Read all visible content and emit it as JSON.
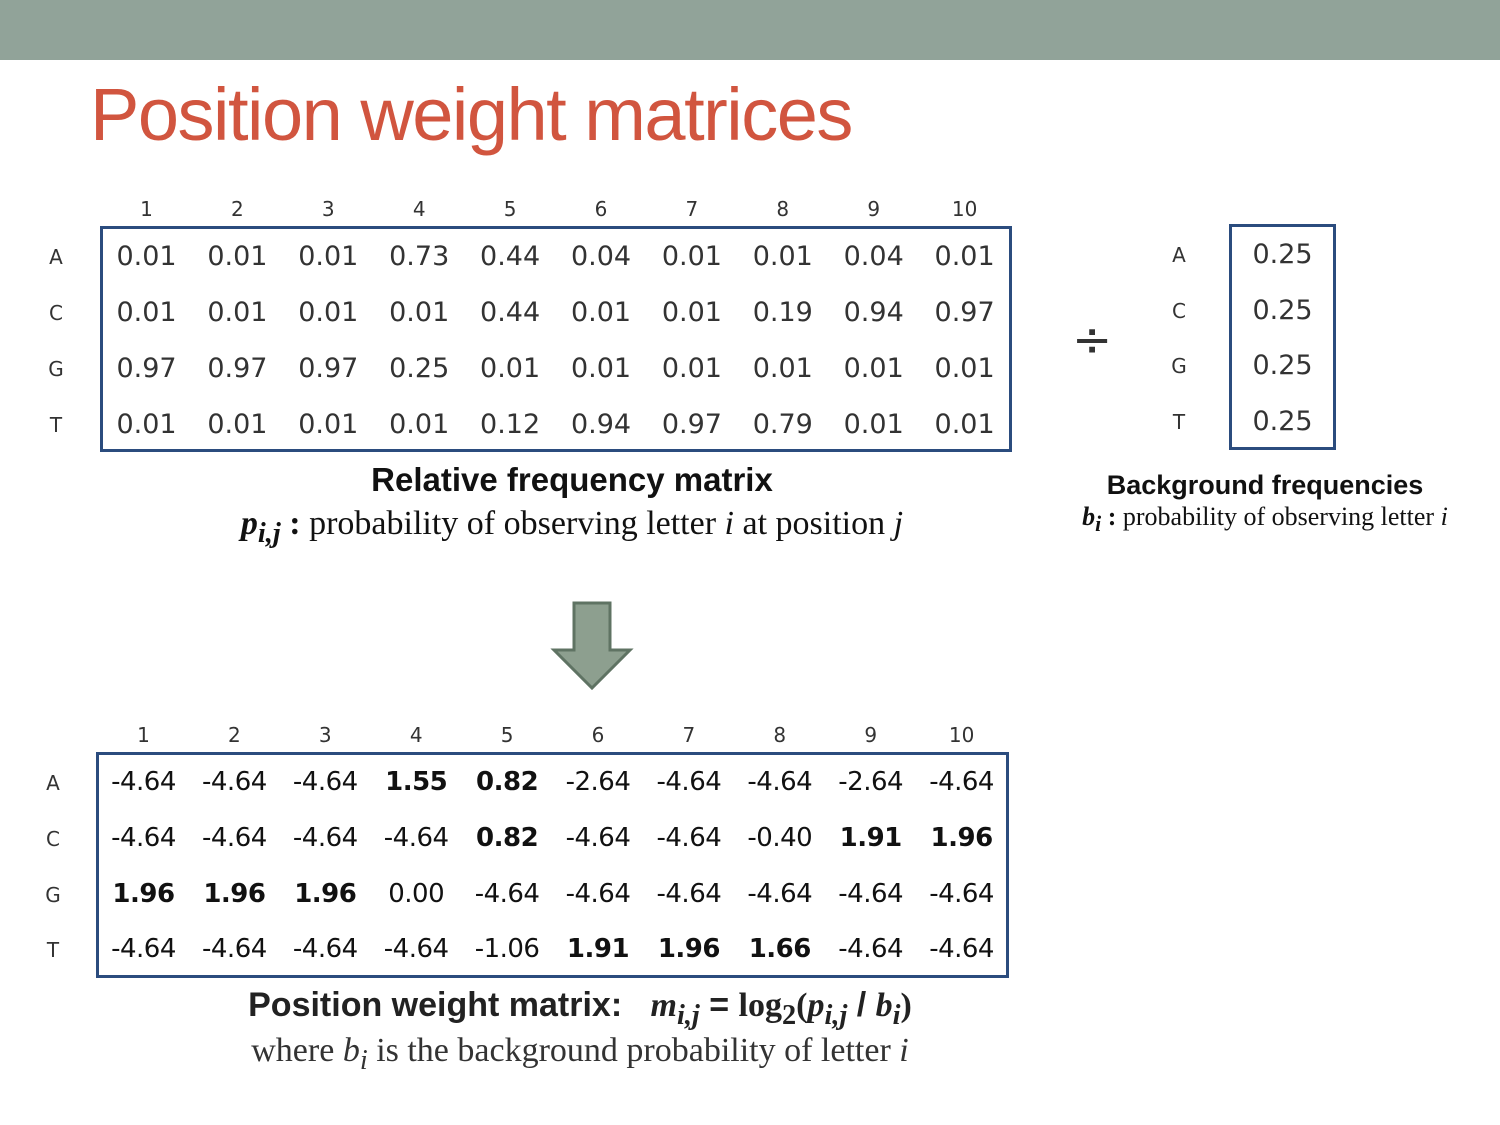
{
  "slide": {
    "title": "Position weight matrices"
  },
  "rows": [
    "A",
    "C",
    "G",
    "T"
  ],
  "columns": [
    "1",
    "2",
    "3",
    "4",
    "5",
    "6",
    "7",
    "8",
    "9",
    "10"
  ],
  "frequency_matrix": {
    "values": [
      [
        "0.01",
        "0.01",
        "0.01",
        "0.73",
        "0.44",
        "0.04",
        "0.01",
        "0.01",
        "0.04",
        "0.01"
      ],
      [
        "0.01",
        "0.01",
        "0.01",
        "0.01",
        "0.44",
        "0.01",
        "0.01",
        "0.19",
        "0.94",
        "0.97"
      ],
      [
        "0.97",
        "0.97",
        "0.97",
        "0.25",
        "0.01",
        "0.01",
        "0.01",
        "0.01",
        "0.01",
        "0.01"
      ],
      [
        "0.01",
        "0.01",
        "0.01",
        "0.01",
        "0.12",
        "0.94",
        "0.97",
        "0.79",
        "0.01",
        "0.01"
      ]
    ],
    "caption_title": "Relative frequency matrix",
    "caption_symbol": "p",
    "caption_sub": "i,j",
    "caption_text_1": " : ",
    "caption_text_2": "probability of observing letter ",
    "caption_var_i": "i",
    "caption_text_3": " at position ",
    "caption_var_j": "j"
  },
  "background": {
    "values": [
      "0.25",
      "0.25",
      "0.25",
      "0.25"
    ],
    "divide_symbol": "÷",
    "caption_title": "Background frequencies",
    "caption_symbol": "b",
    "caption_sub": "i",
    "caption_text_1": " : ",
    "caption_text_2": "probability of observing letter ",
    "caption_var_i": "i"
  },
  "weight_matrix": {
    "values": [
      [
        "-4.64",
        "-4.64",
        "-4.64",
        "1.55",
        "0.82",
        "-2.64",
        "-4.64",
        "-4.64",
        "-2.64",
        "-4.64"
      ],
      [
        "-4.64",
        "-4.64",
        "-4.64",
        "-4.64",
        "0.82",
        "-4.64",
        "-4.64",
        "-0.40",
        "1.91",
        "1.96"
      ],
      [
        "1.96",
        "1.96",
        "1.96",
        "0.00",
        "-4.64",
        "-4.64",
        "-4.64",
        "-4.64",
        "-4.64",
        "-4.64"
      ],
      [
        "-4.64",
        "-4.64",
        "-4.64",
        "-4.64",
        "-1.06",
        "1.91",
        "1.96",
        "1.66",
        "-4.64",
        "-4.64"
      ]
    ],
    "bold": [
      [
        false,
        false,
        false,
        true,
        true,
        false,
        false,
        false,
        false,
        false
      ],
      [
        false,
        false,
        false,
        false,
        true,
        false,
        false,
        false,
        true,
        true
      ],
      [
        true,
        true,
        true,
        false,
        false,
        false,
        false,
        false,
        false,
        false
      ],
      [
        false,
        false,
        false,
        false,
        false,
        true,
        true,
        true,
        false,
        false
      ]
    ],
    "caption_title": "Position weight matrix:",
    "formula_m": "m",
    "formula_m_sub": "i,j",
    "formula_eq": " = ",
    "formula_log": "log",
    "formula_log_sub": "2",
    "formula_open": "(",
    "formula_p": "p",
    "formula_p_sub": "i,j",
    "formula_slash": " / ",
    "formula_b": "b",
    "formula_b_sub": "i",
    "formula_close": ")",
    "note_1": "where ",
    "note_b": "b",
    "note_b_sub": "i",
    "note_2": " is the background probability of letter ",
    "note_i": "i"
  },
  "colors": {
    "top_bar": "#91a399",
    "title": "#d1553f",
    "matrix_border": "#2b4c7e",
    "arrow_fill": "#8d9f8f",
    "arrow_stroke": "#5f7363"
  },
  "icons": {
    "arrow": "arrow-down-icon"
  }
}
